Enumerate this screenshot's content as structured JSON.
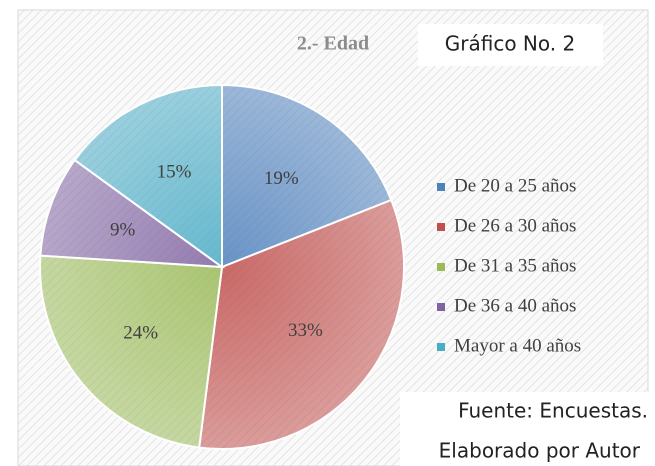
{
  "chart_data": {
    "type": "pie",
    "title": "2.- Edad",
    "caption": "Gráfico No. 2",
    "notes": [
      "Fuente: Encuestas.",
      "Elaborado por Autor"
    ],
    "categories": [
      "De 20 a 25 años",
      "De 26 a 30 años",
      "De 31 a 35  años",
      "De 36 a 40 años",
      "Mayor a 40 años"
    ],
    "values": [
      19,
      33,
      24,
      9,
      15
    ],
    "value_labels": [
      "19%",
      "33%",
      "24%",
      "9%",
      "15%"
    ],
    "colors": [
      "#4f81bd",
      "#c0504d",
      "#9bbb59",
      "#8064a2",
      "#4bacc6"
    ],
    "legend": "right"
  }
}
